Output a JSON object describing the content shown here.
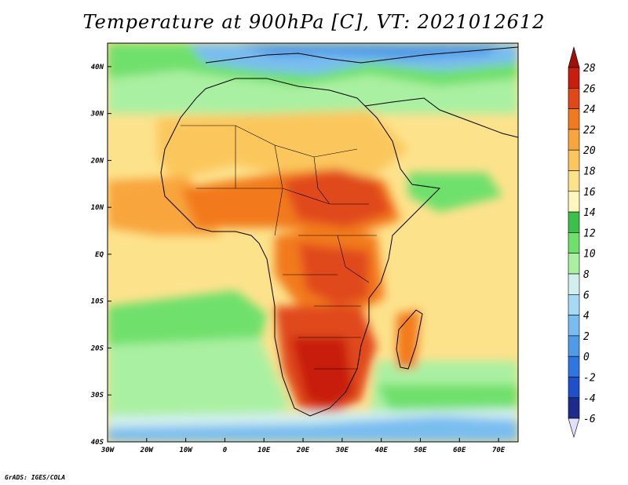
{
  "title": "Temperature at 900hPa [C], VT: 2021012612",
  "credit": "GrADS: IGES/COLA",
  "map": {
    "lon_range": [
      -30,
      75
    ],
    "lat_range": [
      -40,
      45
    ],
    "lon_ticks": [
      {
        "value": -30,
        "label": "30W"
      },
      {
        "value": -20,
        "label": "20W"
      },
      {
        "value": -10,
        "label": "10W"
      },
      {
        "value": 0,
        "label": "0"
      },
      {
        "value": 10,
        "label": "10E"
      },
      {
        "value": 20,
        "label": "20E"
      },
      {
        "value": 30,
        "label": "30E"
      },
      {
        "value": 40,
        "label": "40E"
      },
      {
        "value": 50,
        "label": "50E"
      },
      {
        "value": 60,
        "label": "60E"
      },
      {
        "value": 70,
        "label": "70E"
      }
    ],
    "lat_ticks": [
      {
        "value": 40,
        "label": "40N"
      },
      {
        "value": 30,
        "label": "30N"
      },
      {
        "value": 20,
        "label": "20N"
      },
      {
        "value": 10,
        "label": "10N"
      },
      {
        "value": 0,
        "label": "EQ"
      },
      {
        "value": -10,
        "label": "10S"
      },
      {
        "value": -20,
        "label": "20S"
      },
      {
        "value": -30,
        "label": "30S"
      },
      {
        "value": -40,
        "label": "40S"
      }
    ]
  },
  "colorbar": {
    "levels": [
      -6,
      -4,
      -2,
      0,
      2,
      4,
      6,
      8,
      10,
      12,
      14,
      16,
      18,
      20,
      22,
      24,
      26,
      28
    ],
    "labels": [
      "-6",
      "-4",
      "-2",
      "0",
      "2",
      "4",
      "6",
      "8",
      "10",
      "12",
      "14",
      "16",
      "18",
      "20",
      "22",
      "24",
      "26",
      "28"
    ],
    "colors": [
      "#e0e0ff",
      "#1e2a8c",
      "#1f4fc9",
      "#2e76e0",
      "#4f9be8",
      "#79bdf0",
      "#a7d9f5",
      "#d2efee",
      "#aaf0a2",
      "#6fe06c",
      "#3cc04c",
      "#fff6c0",
      "#fde28c",
      "#fbc75d",
      "#f8a53c",
      "#f27a1e",
      "#e0481a",
      "#c81e10",
      "#a01008"
    ]
  }
}
